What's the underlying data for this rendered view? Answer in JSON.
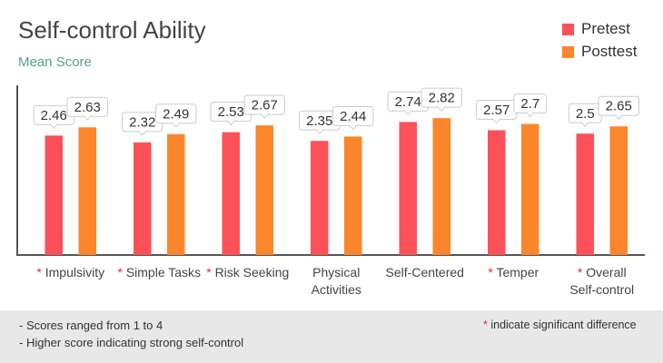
{
  "colors": {
    "pretest": "#fc5158",
    "posttest": "#fc862b",
    "axis": "#555555",
    "label_box_border": "#cccccc",
    "star": "#e03030"
  },
  "chart_data": {
    "type": "bar",
    "title": "Self-control Ability",
    "subtitle": "Mean Score",
    "xlabel": "",
    "ylabel": "",
    "ylim": [
      0,
      4
    ],
    "legend_position": "top-right",
    "grid": false,
    "categories": [
      {
        "lines": [
          "Impulsivity"
        ],
        "significant": true
      },
      {
        "lines": [
          "Simple Tasks"
        ],
        "significant": true
      },
      {
        "lines": [
          "Risk Seeking"
        ],
        "significant": true
      },
      {
        "lines": [
          "Physical",
          "Activities"
        ],
        "significant": false
      },
      {
        "lines": [
          "Self-Centered"
        ],
        "significant": false
      },
      {
        "lines": [
          "Temper"
        ],
        "significant": true
      },
      {
        "lines": [
          "Overall",
          "Self-control"
        ],
        "significant": true
      }
    ],
    "series": [
      {
        "name": "Pretest",
        "color": "#fc5158",
        "values": [
          2.46,
          2.32,
          2.53,
          2.35,
          2.74,
          2.57,
          2.5
        ]
      },
      {
        "name": "Posttest",
        "color": "#fc862b",
        "values": [
          2.63,
          2.49,
          2.67,
          2.44,
          2.82,
          2.7,
          2.65
        ]
      }
    ]
  },
  "notes": {
    "line1": "- Scores ranged from 1 to 4",
    "line2": "- Higher score indicating strong self-control",
    "significance_star": "*",
    "significance_text": " indicate significant difference"
  }
}
